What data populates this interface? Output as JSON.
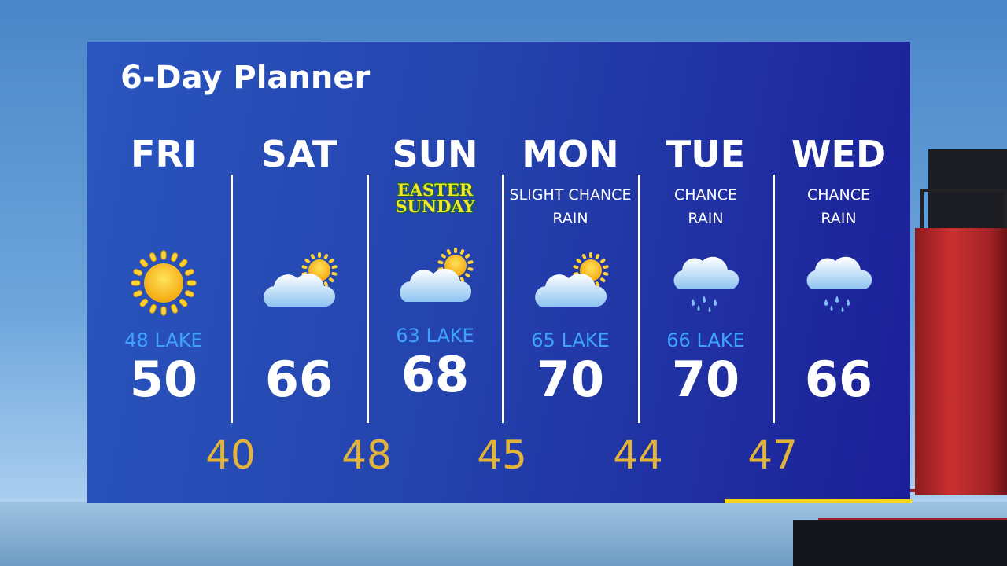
{
  "title": "6-Day Planner",
  "days": [
    {
      "day": "FRI",
      "note": "",
      "note2": "",
      "icon": "sun-icon",
      "lake": "48 LAKE",
      "high": "50"
    },
    {
      "day": "SAT",
      "note": "",
      "note2": "",
      "icon": "partly-cloudy-icon",
      "lake": "",
      "high": "66"
    },
    {
      "day": "SUN",
      "note": "EASTER",
      "note2": "SUNDAY",
      "icon": "partly-cloudy-icon",
      "lake": "63 LAKE",
      "high": "68"
    },
    {
      "day": "MON",
      "note": "SLIGHT CHANCE",
      "note2": "RAIN",
      "icon": "partly-cloudy-icon",
      "lake": "65 LAKE",
      "high": "70"
    },
    {
      "day": "TUE",
      "note": "CHANCE",
      "note2": "RAIN",
      "icon": "rain-cloud-icon",
      "lake": "66 LAKE",
      "high": "70"
    },
    {
      "day": "WED",
      "note": "CHANCE",
      "note2": "RAIN",
      "icon": "rain-cloud-icon",
      "lake": "",
      "high": "66"
    }
  ],
  "lows": [
    "40",
    "48",
    "45",
    "44",
    "47"
  ],
  "colors": {
    "panel": "#2443ad",
    "lows": "#e3b43c",
    "lake": "#3fa2ff",
    "accent": "#f7d51b"
  }
}
